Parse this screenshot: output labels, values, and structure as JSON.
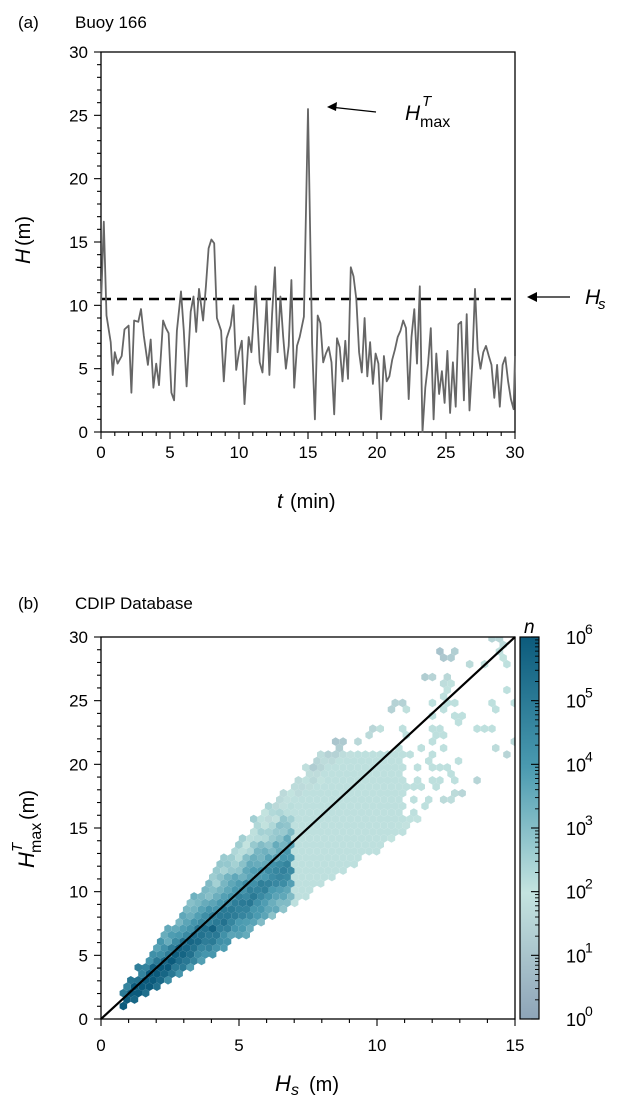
{
  "panel_a": {
    "panel_letter": "(a)",
    "title": "Buoy 166",
    "ylabel_var": "H",
    "ylabel_unit": "(m)",
    "xlabel_var": "t",
    "xlabel_unit": "(min)",
    "annotation_hmax_var": "H",
    "annotation_hmax_sup": "T",
    "annotation_hmax_sub": "max",
    "annotation_hs_var": "H",
    "annotation_hs_sub": "s"
  },
  "panel_b": {
    "panel_letter": "(b)",
    "title": "CDIP Database",
    "ylabel_var": "H",
    "ylabel_sup": "T",
    "ylabel_sub": "max",
    "ylabel_unit": "(m)",
    "xlabel_var": "H",
    "xlabel_sub": "s",
    "xlabel_unit": "(m)",
    "colorbar_label": "n"
  },
  "chart_data": [
    {
      "type": "line",
      "panel": "a",
      "xlim": [
        0,
        30
      ],
      "ylim": [
        0,
        30
      ],
      "xticks": [
        0,
        5,
        10,
        15,
        20,
        25,
        30
      ],
      "yticks": [
        0,
        5,
        10,
        15,
        20,
        25,
        30
      ],
      "hs_line": 10.5,
      "line_color": "#666666",
      "points": [
        [
          0,
          10
        ],
        [
          0.2,
          16.6
        ],
        [
          0.4,
          9.2
        ],
        [
          0.7,
          7.1
        ],
        [
          0.85,
          4.5
        ],
        [
          1.0,
          6.3
        ],
        [
          1.2,
          5.4
        ],
        [
          1.5,
          6.0
        ],
        [
          1.7,
          8.1
        ],
        [
          2.0,
          8.4
        ],
        [
          2.2,
          3.1
        ],
        [
          2.4,
          8.8
        ],
        [
          2.7,
          8.7
        ],
        [
          2.9,
          9.7
        ],
        [
          3.1,
          7.6
        ],
        [
          3.4,
          5.3
        ],
        [
          3.6,
          7.3
        ],
        [
          3.8,
          3.5
        ],
        [
          4.0,
          5.4
        ],
        [
          4.2,
          3.7
        ],
        [
          4.5,
          8.8
        ],
        [
          4.7,
          8.2
        ],
        [
          4.9,
          7.8
        ],
        [
          5.1,
          3.1
        ],
        [
          5.3,
          2.5
        ],
        [
          5.5,
          8.0
        ],
        [
          5.8,
          11.1
        ],
        [
          6.0,
          8.0
        ],
        [
          6.2,
          3.6
        ],
        [
          6.5,
          9.5
        ],
        [
          6.7,
          10.7
        ],
        [
          6.9,
          7.9
        ],
        [
          7.1,
          11.3
        ],
        [
          7.4,
          8.8
        ],
        [
          7.6,
          11.5
        ],
        [
          7.8,
          14.5
        ],
        [
          8.0,
          15.2
        ],
        [
          8.2,
          14.9
        ],
        [
          8.4,
          9.0
        ],
        [
          8.7,
          8.0
        ],
        [
          8.9,
          4.0
        ],
        [
          9.1,
          7.4
        ],
        [
          9.4,
          8.4
        ],
        [
          9.6,
          10.0
        ],
        [
          9.8,
          4.9
        ],
        [
          10.0,
          6.3
        ],
        [
          10.2,
          7.2
        ],
        [
          10.4,
          2.2
        ],
        [
          10.7,
          7.5
        ],
        [
          10.9,
          6.3
        ],
        [
          11.2,
          11.5
        ],
        [
          11.5,
          5.5
        ],
        [
          11.7,
          4.7
        ],
        [
          12.0,
          10.4
        ],
        [
          12.2,
          4.5
        ],
        [
          12.4,
          9.3
        ],
        [
          12.6,
          13.0
        ],
        [
          12.8,
          6.3
        ],
        [
          13.0,
          10.7
        ],
        [
          13.2,
          7.5
        ],
        [
          13.4,
          5.0
        ],
        [
          13.6,
          6.8
        ],
        [
          13.8,
          12.0
        ],
        [
          14.0,
          3.5
        ],
        [
          14.2,
          6.8
        ],
        [
          14.4,
          7.5
        ],
        [
          14.7,
          9.1
        ],
        [
          15.0,
          25.5
        ],
        [
          15.3,
          7.0
        ],
        [
          15.5,
          1.0
        ],
        [
          15.7,
          9.2
        ],
        [
          15.9,
          8.6
        ],
        [
          16.1,
          5.5
        ],
        [
          16.3,
          6.2
        ],
        [
          16.5,
          6.7
        ],
        [
          16.7,
          5.5
        ],
        [
          16.9,
          1.4
        ],
        [
          17.1,
          7.4
        ],
        [
          17.3,
          6.7
        ],
        [
          17.5,
          4.0
        ],
        [
          17.7,
          7.2
        ],
        [
          17.9,
          4.2
        ],
        [
          18.1,
          13.0
        ],
        [
          18.3,
          12.3
        ],
        [
          18.5,
          10.5
        ],
        [
          18.7,
          6.3
        ],
        [
          18.9,
          4.7
        ],
        [
          19.1,
          9.0
        ],
        [
          19.3,
          4.4
        ],
        [
          19.5,
          7.1
        ],
        [
          19.7,
          3.8
        ],
        [
          19.9,
          6.2
        ],
        [
          20.1,
          5.4
        ],
        [
          20.3,
          1.0
        ],
        [
          20.5,
          6.0
        ],
        [
          20.7,
          4.0
        ],
        [
          20.9,
          4.4
        ],
        [
          21.1,
          5.7
        ],
        [
          21.3,
          6.5
        ],
        [
          21.5,
          7.5
        ],
        [
          21.7,
          8.0
        ],
        [
          21.9,
          8.8
        ],
        [
          22.1,
          8.2
        ],
        [
          22.3,
          2.6
        ],
        [
          22.5,
          7.5
        ],
        [
          22.7,
          9.7
        ],
        [
          22.9,
          5.4
        ],
        [
          23.1,
          11.5
        ],
        [
          23.3,
          0.0
        ],
        [
          23.5,
          3.5
        ],
        [
          23.7,
          5.4
        ],
        [
          23.9,
          8.2
        ],
        [
          24.1,
          1.0
        ],
        [
          24.3,
          6.2
        ],
        [
          24.5,
          3.0
        ],
        [
          24.7,
          4.8
        ],
        [
          24.9,
          2.3
        ],
        [
          25.1,
          6.4
        ],
        [
          25.3,
          1.5
        ],
        [
          25.5,
          5.5
        ],
        [
          25.7,
          2.0
        ],
        [
          25.9,
          8.5
        ],
        [
          26.1,
          8.7
        ],
        [
          26.3,
          2.5
        ],
        [
          26.5,
          9.3
        ],
        [
          26.7,
          1.7
        ],
        [
          26.9,
          5.3
        ],
        [
          27.1,
          11.3
        ],
        [
          27.3,
          6.5
        ],
        [
          27.5,
          5.0
        ],
        [
          27.7,
          6.3
        ],
        [
          27.9,
          6.8
        ],
        [
          28.1,
          6.0
        ],
        [
          28.3,
          5.3
        ],
        [
          28.5,
          2.7
        ],
        [
          28.7,
          5.3
        ],
        [
          28.9,
          2.0
        ],
        [
          29.1,
          5.3
        ],
        [
          29.3,
          5.9
        ],
        [
          29.5,
          4.0
        ],
        [
          29.7,
          2.6
        ],
        [
          29.9,
          1.8
        ],
        [
          30.0,
          6.0
        ]
      ]
    },
    {
      "type": "heatmap",
      "panel": "b",
      "xlim": [
        0,
        15
      ],
      "ylim": [
        0,
        30
      ],
      "xticks": [
        0,
        5,
        10,
        15
      ],
      "yticks": [
        0,
        5,
        10,
        15,
        20,
        25,
        30
      ],
      "reference_line": "y = 2x",
      "color_scale": "log",
      "colorbar_range": [
        1,
        1000000
      ],
      "colorbar_ticks": [
        {
          "base": "10",
          "exp": "0"
        },
        {
          "base": "10",
          "exp": "1"
        },
        {
          "base": "10",
          "exp": "2"
        },
        {
          "base": "10",
          "exp": "3"
        },
        {
          "base": "10",
          "exp": "4"
        },
        {
          "base": "10",
          "exp": "5"
        },
        {
          "base": "10",
          "exp": "6"
        }
      ],
      "colormap": [
        "#8ea4b8",
        "#c4e4e0",
        "#4a9ab0",
        "#0c5b7c"
      ]
    }
  ]
}
